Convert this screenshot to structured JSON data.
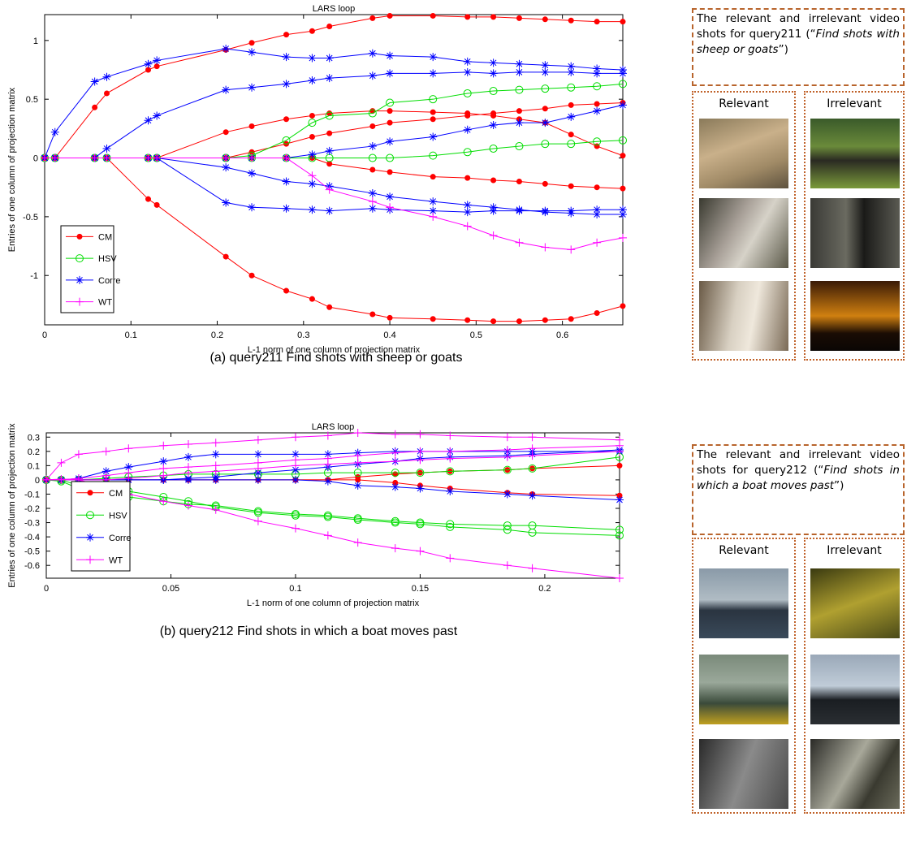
{
  "chart_data": [
    {
      "type": "line",
      "title": "LARS loop",
      "xlabel": "L-1 norm of one column of projection matrix",
      "ylabel": "Entries of one column of projection matrix",
      "caption": "(a) query211 Find shots with sheep or goats",
      "x": [
        0,
        0.012,
        0.058,
        0.072,
        0.12,
        0.13,
        0.21,
        0.24,
        0.28,
        0.31,
        0.33,
        0.38,
        0.4,
        0.45,
        0.49,
        0.52,
        0.55,
        0.58,
        0.61,
        0.64,
        0.67
      ],
      "xlim": [
        0,
        0.67
      ],
      "ylim": [
        -1.42,
        1.22
      ],
      "xticks": [
        0,
        0.1,
        0.2,
        0.3,
        0.4,
        0.5,
        0.6
      ],
      "yticks": [
        -1,
        -0.5,
        0,
        0.5,
        1
      ],
      "series": [
        {
          "name": "CM",
          "color": "#ff0000",
          "marker": "dot",
          "lines": [
            [
              0,
              0,
              0.43,
              0.55,
              0.75,
              0.78,
              0.92,
              0.98,
              1.05,
              1.08,
              1.12,
              1.19,
              1.21,
              1.21,
              1.2,
              1.2,
              1.19,
              1.18,
              1.17,
              1.16,
              1.16
            ],
            [
              0,
              0,
              0,
              0,
              -0.35,
              -0.4,
              -0.84,
              -1.0,
              -1.13,
              -1.2,
              -1.27,
              -1.33,
              -1.36,
              -1.37,
              -1.38,
              -1.39,
              -1.39,
              -1.38,
              -1.37,
              -1.32,
              -1.26
            ],
            [
              0,
              0,
              0,
              0,
              0,
              0,
              0,
              0.05,
              0.12,
              0.18,
              0.21,
              0.27,
              0.3,
              0.33,
              0.36,
              0.38,
              0.4,
              0.42,
              0.45,
              0.46,
              0.47
            ],
            [
              0,
              0,
              0,
              0,
              0,
              0,
              0,
              0,
              0,
              0,
              -0.05,
              -0.1,
              -0.12,
              -0.16,
              -0.17,
              -0.19,
              -0.2,
              -0.22,
              -0.24,
              -0.25,
              -0.26
            ],
            [
              0,
              0,
              0,
              0,
              0,
              0,
              0.22,
              0.27,
              0.33,
              0.36,
              0.38,
              0.4,
              0.4,
              0.39,
              0.38,
              0.36,
              0.33,
              0.3,
              0.2,
              0.1,
              0.02
            ]
          ]
        },
        {
          "name": "HSV",
          "color": "#00dd00",
          "marker": "circle",
          "lines": [
            [
              0,
              0,
              0,
              0,
              0,
              0,
              0,
              0.02,
              0.15,
              0.3,
              0.36,
              0.38,
              0.47,
              0.5,
              0.55,
              0.57,
              0.58,
              0.59,
              0.6,
              0.61,
              0.63
            ],
            [
              0,
              0,
              0,
              0,
              0,
              0,
              0,
              0,
              0,
              0,
              0,
              0,
              0,
              0.02,
              0.05,
              0.08,
              0.1,
              0.12,
              0.12,
              0.14,
              0.15
            ]
          ]
        },
        {
          "name": "Corre",
          "color": "#0000ff",
          "marker": "star",
          "lines": [
            [
              0,
              0.22,
              0.65,
              0.69,
              0.8,
              0.83,
              0.93,
              0.9,
              0.86,
              0.85,
              0.85,
              0.89,
              0.87,
              0.86,
              0.82,
              0.81,
              0.8,
              0.79,
              0.78,
              0.76,
              0.75
            ],
            [
              0,
              0,
              0,
              0.08,
              0.32,
              0.36,
              0.58,
              0.6,
              0.63,
              0.66,
              0.68,
              0.7,
              0.72,
              0.72,
              0.73,
              0.72,
              0.73,
              0.73,
              0.73,
              0.72,
              0.72
            ],
            [
              0,
              0,
              0,
              0,
              0,
              0,
              -0.38,
              -0.42,
              -0.43,
              -0.44,
              -0.45,
              -0.43,
              -0.44,
              -0.45,
              -0.46,
              -0.45,
              -0.45,
              -0.45,
              -0.45,
              -0.44,
              -0.44
            ],
            [
              0,
              0,
              0,
              0,
              0,
              0,
              -0.08,
              -0.13,
              -0.2,
              -0.22,
              -0.24,
              -0.3,
              -0.33,
              -0.37,
              -0.4,
              -0.42,
              -0.44,
              -0.46,
              -0.47,
              -0.48,
              -0.48
            ],
            [
              0,
              0,
              0,
              0,
              0,
              0,
              0,
              0,
              0,
              0.03,
              0.06,
              0.1,
              0.14,
              0.18,
              0.24,
              0.28,
              0.3,
              0.3,
              0.35,
              0.4,
              0.45
            ]
          ]
        },
        {
          "name": "WT",
          "color": "#ff00ff",
          "marker": "plus",
          "lines": [
            [
              0,
              0,
              0,
              0,
              0,
              0,
              0,
              0,
              0,
              -0.15,
              -0.27,
              -0.37,
              -0.42,
              -0.5,
              -0.58,
              -0.66,
              -0.72,
              -0.76,
              -0.78,
              -0.72,
              -0.68
            ]
          ]
        }
      ]
    },
    {
      "type": "line",
      "title": "LARS loop",
      "xlabel": "L-1 norm of one column of projection matrix",
      "ylabel": "Entries of one column of projection matrix",
      "caption": "(b) query212 Find shots in which a boat moves past",
      "x": [
        0,
        0.006,
        0.013,
        0.024,
        0.033,
        0.047,
        0.057,
        0.068,
        0.085,
        0.1,
        0.113,
        0.125,
        0.14,
        0.15,
        0.162,
        0.185,
        0.195,
        0.23
      ],
      "xlim": [
        0,
        0.23
      ],
      "ylim": [
        -0.69,
        0.33
      ],
      "xticks": [
        0,
        0.05,
        0.1,
        0.15,
        0.2
      ],
      "yticks": [
        -0.6,
        -0.5,
        -0.4,
        -0.3,
        -0.2,
        -0.1,
        0,
        0.1,
        0.2,
        0.3
      ],
      "series": [
        {
          "name": "CM",
          "color": "#ff0000",
          "marker": "dot",
          "lines": [
            [
              0,
              0,
              0,
              0,
              0,
              0,
              0,
              0,
              0,
              0,
              0,
              0.02,
              0.04,
              0.05,
              0.06,
              0.07,
              0.08,
              0.1
            ],
            [
              0,
              0,
              0,
              0,
              0,
              0,
              0,
              0,
              0,
              0,
              0,
              0,
              -0.02,
              -0.04,
              -0.06,
              -0.09,
              -0.1,
              -0.11
            ]
          ]
        },
        {
          "name": "HSV",
          "color": "#00dd00",
          "marker": "circle",
          "lines": [
            [
              0,
              -0.01,
              -0.06,
              -0.1,
              -0.12,
              -0.15,
              -0.17,
              -0.18,
              -0.22,
              -0.24,
              -0.25,
              -0.27,
              -0.29,
              -0.3,
              -0.31,
              -0.32,
              -0.32,
              -0.35
            ],
            [
              0,
              0,
              -0.04,
              -0.05,
              -0.08,
              -0.12,
              -0.15,
              -0.19,
              -0.23,
              -0.25,
              -0.26,
              -0.28,
              -0.3,
              -0.31,
              -0.33,
              -0.35,
              -0.37,
              -0.39
            ],
            [
              0,
              0,
              0,
              0.01,
              0.02,
              0.03,
              0.04,
              0.04,
              0.04,
              0.04,
              0.05,
              0.05,
              0.05,
              0.05,
              0.06,
              0.07,
              0.08,
              0.16
            ]
          ]
        },
        {
          "name": "Corre",
          "color": "#0000ff",
          "marker": "star",
          "lines": [
            [
              0,
              0,
              0.01,
              0.06,
              0.09,
              0.13,
              0.16,
              0.18,
              0.18,
              0.18,
              0.18,
              0.19,
              0.2,
              0.2,
              0.2,
              0.2,
              0.2,
              0.2
            ],
            [
              0,
              0,
              0,
              0,
              0,
              0,
              0.01,
              0.02,
              0.05,
              0.07,
              0.09,
              0.11,
              0.13,
              0.15,
              0.16,
              0.17,
              0.18,
              0.21
            ],
            [
              0,
              0,
              0,
              0,
              0,
              0,
              0,
              0,
              0,
              0,
              -0.01,
              -0.04,
              -0.05,
              -0.06,
              -0.08,
              -0.1,
              -0.11,
              -0.14
            ]
          ]
        },
        {
          "name": "WT",
          "color": "#ff00ff",
          "marker": "plus",
          "lines": [
            [
              0,
              0.12,
              0.18,
              0.2,
              0.22,
              0.24,
              0.25,
              0.26,
              0.28,
              0.3,
              0.31,
              0.33,
              0.32,
              0.32,
              0.31,
              0.3,
              0.3,
              0.28
            ],
            [
              0,
              0.005,
              0,
              -0.05,
              -0.1,
              -0.15,
              -0.18,
              -0.21,
              -0.29,
              -0.34,
              -0.39,
              -0.44,
              -0.48,
              -0.5,
              -0.55,
              -0.6,
              -0.62,
              -0.69
            ],
            [
              0,
              0,
              0.01,
              0.03,
              0.05,
              0.08,
              0.09,
              0.1,
              0.12,
              0.14,
              0.15,
              0.17,
              0.19,
              0.2,
              0.2,
              0.21,
              0.22,
              0.24
            ],
            [
              0,
              0,
              0,
              0,
              0.01,
              0.03,
              0.05,
              0.06,
              0.08,
              0.1,
              0.11,
              0.12,
              0.13,
              0.14,
              0.15,
              0.16,
              0.17,
              0.2
            ]
          ]
        }
      ]
    }
  ],
  "panels": [
    {
      "prefix": "The relevant and irrelevant video shots for query211 (“",
      "query": "Find shots with sheep or goats",
      "suffix": "”)",
      "relevant": "Relevant",
      "irrelevant": "Irrelevant"
    },
    {
      "prefix": "The relevant and irrelevant video shots for query212 (“",
      "query": "Find shots in which a boat moves past",
      "suffix": "”)",
      "relevant": "Relevant",
      "irrelevant": "Irrelevant"
    }
  ]
}
